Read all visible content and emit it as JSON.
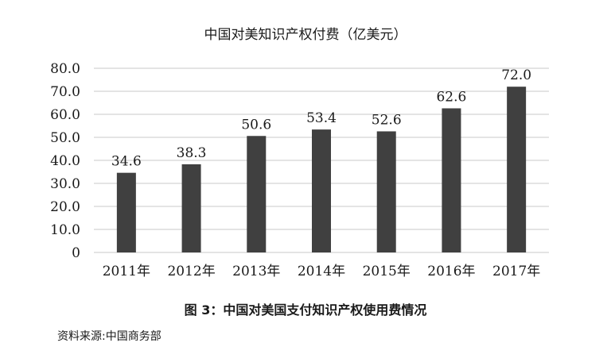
{
  "chart_data": {
    "type": "bar",
    "title": "中国对美知识产权付费（亿美元）",
    "categories": [
      "2011年",
      "2012年",
      "2013年",
      "2014年",
      "2015年",
      "2016年",
      "2017年"
    ],
    "values": [
      34.6,
      38.3,
      50.6,
      53.4,
      52.6,
      62.6,
      72.0
    ],
    "value_labels": [
      "34.6",
      "38.3",
      "50.6",
      "53.4",
      "52.6",
      "62.6",
      "72.0"
    ],
    "ylim": [
      0,
      80
    ],
    "yticks": [
      0,
      10,
      20,
      30,
      40,
      50,
      60,
      70,
      80
    ],
    "ytick_labels": [
      "0",
      "10.0",
      "20.0",
      "30.0",
      "40.0",
      "50.0",
      "60.0",
      "70.0",
      "80.0"
    ],
    "grid": true,
    "bar_color": "#404040",
    "grid_color": "#c8c8c8"
  },
  "caption": "图 3：中国对美国支付知识产权使用费情况",
  "source": "资料来源:中国商务部"
}
